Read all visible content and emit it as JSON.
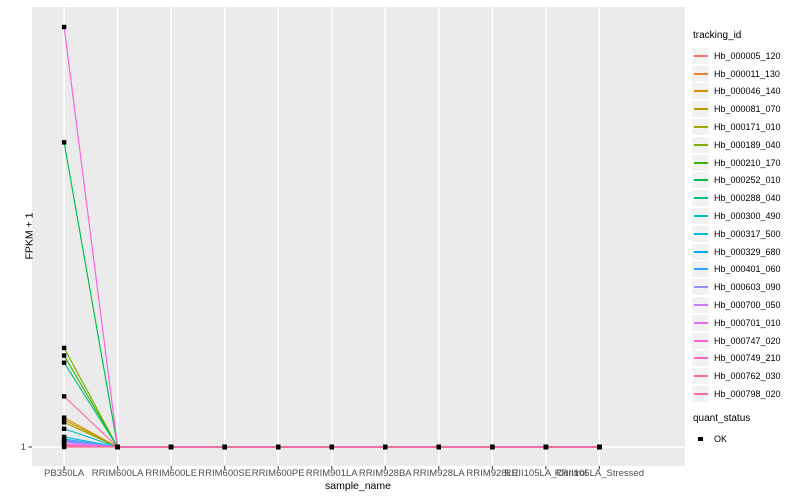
{
  "colors": {
    "panel_bg": "#EBEBEB",
    "grid": "#FFFFFF",
    "axis_text": "#4D4D4D",
    "axis_title": "#000000",
    "point": "#000000",
    "tick_mark": "#333333",
    "legend_key_bg": "#F2F2F2"
  },
  "chart_data": {
    "type": "line",
    "title": "",
    "xlabel": "sample_name",
    "ylabel": "FPKM + 1",
    "y_scale": "log10",
    "y_tick_labels": [
      "1"
    ],
    "grid": "major-only",
    "legend_position": "right",
    "point_shape": "filled-square-black",
    "categories": [
      "PB350LA",
      "RRIM600LA",
      "RRIM600LE",
      "RRIM600SE",
      "RRIM600PE",
      "RRIM901LA",
      "RRIM928BA",
      "RRIM928LA",
      "RRIM928LE",
      "RRII105LA_Control",
      "RRII105LA_Stressed"
    ],
    "series": [
      {
        "name": "Hb_000005_120",
        "color": "#F8766D",
        "fpkm_plus_1": [
          1.1,
          1,
          1,
          1,
          1,
          1,
          1,
          1,
          1,
          1,
          1
        ]
      },
      {
        "name": "Hb_000011_130",
        "color": "#EA8331",
        "fpkm_plus_1": [
          1.04,
          1,
          1,
          1,
          1,
          1,
          1,
          1,
          1,
          1,
          1
        ]
      },
      {
        "name": "Hb_000046_140",
        "color": "#D89000",
        "fpkm_plus_1": [
          1.62,
          1,
          1,
          1,
          1,
          1,
          1,
          1,
          1,
          1,
          1
        ]
      },
      {
        "name": "Hb_000081_070",
        "color": "#C09B00",
        "fpkm_plus_1": [
          1.56,
          1,
          1,
          1,
          1,
          1,
          1,
          1,
          1,
          1,
          1
        ]
      },
      {
        "name": "Hb_000171_010",
        "color": "#A3A500",
        "fpkm_plus_1": [
          1.5,
          1,
          1,
          1,
          1,
          1,
          1,
          1,
          1,
          1,
          1
        ]
      },
      {
        "name": "Hb_000189_040",
        "color": "#7CAE00",
        "fpkm_plus_1": [
          5.1,
          1,
          1,
          1,
          1,
          1,
          1,
          1,
          1,
          1,
          1
        ]
      },
      {
        "name": "Hb_000210_170",
        "color": "#39B600",
        "fpkm_plus_1": [
          4.5,
          1,
          1,
          1,
          1,
          1,
          1,
          1,
          1,
          1,
          1
        ]
      },
      {
        "name": "Hb_000252_010",
        "color": "#00BB4E",
        "fpkm_plus_1": [
          150,
          1,
          1,
          1,
          1,
          1,
          1,
          1,
          1,
          1,
          1
        ]
      },
      {
        "name": "Hb_000288_040",
        "color": "#00C087",
        "fpkm_plus_1": [
          4.0,
          1,
          1,
          1,
          1,
          1,
          1,
          1,
          1,
          1,
          1
        ]
      },
      {
        "name": "Hb_000300_490",
        "color": "#00C0B8",
        "fpkm_plus_1": [
          1.35,
          1,
          1,
          1,
          1,
          1,
          1,
          1,
          1,
          1,
          1
        ]
      },
      {
        "name": "Hb_000317_500",
        "color": "#00BAE0",
        "fpkm_plus_1": [
          1.18,
          1,
          1,
          1,
          1,
          1,
          1,
          1,
          1,
          1,
          1
        ]
      },
      {
        "name": "Hb_000329_680",
        "color": "#00B0F6",
        "fpkm_plus_1": [
          1.14,
          1,
          1,
          1,
          1,
          1,
          1,
          1,
          1,
          1,
          1
        ]
      },
      {
        "name": "Hb_000401_060",
        "color": "#35A2FF",
        "fpkm_plus_1": [
          1.1,
          1,
          1,
          1,
          1,
          1,
          1,
          1,
          1,
          1,
          1
        ]
      },
      {
        "name": "Hb_000603_090",
        "color": "#9590FF",
        "fpkm_plus_1": [
          1.12,
          1,
          1,
          1,
          1,
          1,
          1,
          1,
          1,
          1,
          1
        ]
      },
      {
        "name": "Hb_000700_050",
        "color": "#C77CFF",
        "fpkm_plus_1": [
          1.08,
          1,
          1,
          1,
          1,
          1,
          1,
          1,
          1,
          1,
          1
        ]
      },
      {
        "name": "Hb_000701_010",
        "color": "#E76BF3",
        "fpkm_plus_1": [
          1.05,
          1,
          1,
          1,
          1,
          1,
          1,
          1,
          1,
          1,
          1
        ]
      },
      {
        "name": "Hb_000747_020",
        "color": "#FA62DB",
        "fpkm_plus_1": [
          1000,
          1,
          1,
          1,
          1,
          1,
          1,
          1,
          1,
          1,
          1
        ]
      },
      {
        "name": "Hb_000749_210",
        "color": "#FF62BC",
        "fpkm_plus_1": [
          1.02,
          1,
          1,
          1,
          1,
          1,
          1,
          1,
          1,
          1,
          1
        ]
      },
      {
        "name": "Hb_000762_030",
        "color": "#FF6A98",
        "fpkm_plus_1": [
          2.3,
          1,
          1,
          1,
          1,
          1,
          1,
          1,
          1,
          1,
          1
        ]
      },
      {
        "name": "Hb_000798_020",
        "color": "#FF6B8E",
        "fpkm_plus_1": [
          1.0,
          1,
          1,
          1,
          1,
          1,
          1,
          1,
          1,
          1,
          1
        ]
      }
    ],
    "legend": {
      "color_title": "tracking_id",
      "shape_title": "quant_status",
      "shape_entries": [
        "OK"
      ]
    }
  }
}
